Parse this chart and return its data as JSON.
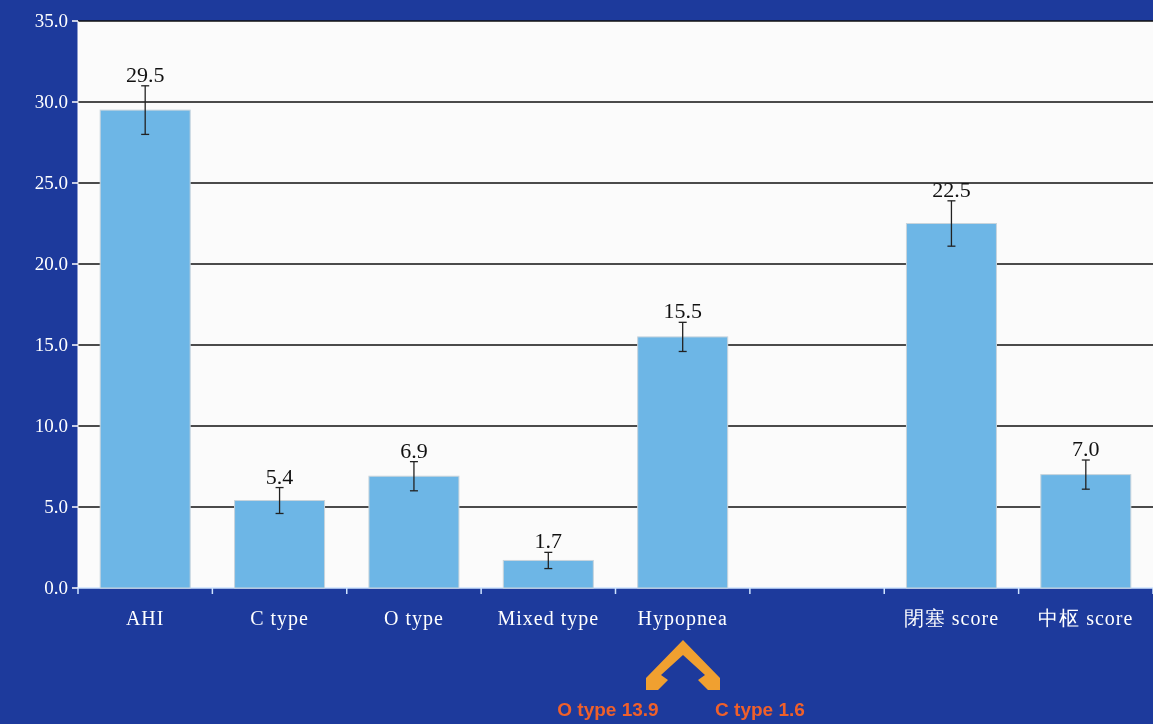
{
  "chart_data": {
    "type": "bar",
    "categories": [
      "AHI",
      "C type",
      "O type",
      "Mixed type",
      "Hypopnea",
      null,
      "閉塞 score",
      "中枢 score"
    ],
    "values": [
      29.5,
      5.4,
      6.9,
      1.7,
      15.5,
      null,
      22.5,
      7.0
    ],
    "value_labels": [
      "29.5",
      "5.4",
      "6.9",
      "1.7",
      "15.5",
      null,
      "22.5",
      "7.0"
    ],
    "errors": [
      1.5,
      0.8,
      0.9,
      0.5,
      0.9,
      null,
      1.4,
      0.9
    ],
    "color": "#6db6e6",
    "ylim": [
      0,
      35
    ],
    "yticks": [
      {
        "value": 0,
        "label": "0.0"
      },
      {
        "value": 5,
        "label": "5.0"
      },
      {
        "value": 10,
        "label": "10.0"
      },
      {
        "value": 15,
        "label": "15.0"
      },
      {
        "value": 20,
        "label": "20.0"
      },
      {
        "value": 25,
        "label": "25.0"
      },
      {
        "value": 30,
        "label": "30.0"
      },
      {
        "value": 35,
        "label": "35.0"
      }
    ],
    "grid": "y",
    "annotations": [
      "O type 13.9",
      "C type 1.6"
    ]
  }
}
